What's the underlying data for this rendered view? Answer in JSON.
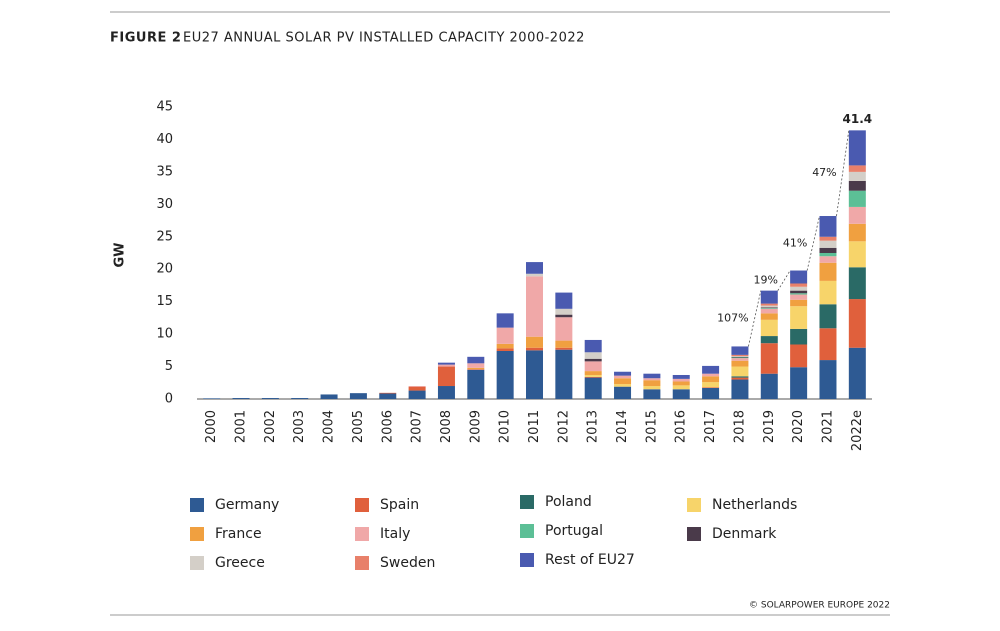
{
  "chart_data": {
    "type": "stacked_bar",
    "figure_label": "FIGURE 2",
    "title": "EU27 ANNUAL SOLAR PV INSTALLED CAPACITY 2000-2022",
    "ylabel": "GW",
    "source": "© SOLARPOWER EUROPE 2022",
    "categories": [
      "2000",
      "2001",
      "2002",
      "2003",
      "2004",
      "2005",
      "2006",
      "2007",
      "2008",
      "2009",
      "2010",
      "2011",
      "2012",
      "2013",
      "2014",
      "2015",
      "2016",
      "2017",
      "2018",
      "2019",
      "2020",
      "2021",
      "2022e"
    ],
    "ylim": [
      0,
      45
    ],
    "yticks": [
      0,
      5,
      10,
      15,
      20,
      25,
      30,
      35,
      40,
      45
    ],
    "grid": false,
    "series": [
      {
        "name": "Germany",
        "color": "#2e5a93",
        "values": [
          0.1,
          0.15,
          0.15,
          0.15,
          0.7,
          0.9,
          0.85,
          1.3,
          2.0,
          4.5,
          7.4,
          7.5,
          7.6,
          3.3,
          1.9,
          1.5,
          1.5,
          1.7,
          3.0,
          3.9,
          4.9,
          6.0,
          7.9
        ]
      },
      {
        "name": "Spain",
        "color": "#e0603c",
        "values": [
          0,
          0,
          0,
          0,
          0,
          0,
          0.1,
          0.6,
          3.0,
          0.1,
          0.4,
          0.4,
          0.3,
          0.1,
          0,
          0,
          0,
          0.1,
          0.3,
          4.7,
          3.5,
          4.9,
          7.5
        ]
      },
      {
        "name": "Poland",
        "color": "#2a6a66",
        "values": [
          0,
          0,
          0,
          0,
          0,
          0,
          0,
          0,
          0,
          0,
          0,
          0,
          0,
          0,
          0,
          0,
          0,
          0,
          0.2,
          1.1,
          2.4,
          3.7,
          4.9
        ]
      },
      {
        "name": "Netherlands",
        "color": "#f7d46a",
        "values": [
          0,
          0,
          0,
          0,
          0,
          0,
          0,
          0,
          0,
          0,
          0,
          0,
          0,
          0.3,
          0.4,
          0.5,
          0.6,
          0.8,
          1.5,
          2.5,
          3.5,
          3.6,
          4.0
        ]
      },
      {
        "name": "France",
        "color": "#f0a040",
        "values": [
          0,
          0,
          0,
          0,
          0,
          0,
          0,
          0,
          0,
          0.2,
          0.7,
          1.7,
          1.1,
          0.6,
          0.9,
          0.9,
          0.6,
          0.9,
          0.9,
          1.0,
          1.0,
          2.8,
          2.7
        ]
      },
      {
        "name": "Italy",
        "color": "#f0a8a8",
        "values": [
          0,
          0,
          0,
          0,
          0,
          0,
          0,
          0.1,
          0.3,
          0.7,
          2.5,
          9.3,
          3.6,
          1.5,
          0.4,
          0.3,
          0.4,
          0.4,
          0.4,
          0.7,
          0.8,
          1.0,
          2.6
        ]
      },
      {
        "name": "Portugal",
        "color": "#5cbf96",
        "values": [
          0,
          0,
          0,
          0,
          0,
          0,
          0,
          0,
          0,
          0,
          0,
          0,
          0,
          0,
          0,
          0,
          0,
          0,
          0.1,
          0.1,
          0.2,
          0.5,
          2.5
        ]
      },
      {
        "name": "Denmark",
        "color": "#4a3a4a",
        "values": [
          0,
          0,
          0,
          0,
          0,
          0,
          0,
          0,
          0,
          0,
          0,
          0,
          0.4,
          0.4,
          0,
          0,
          0,
          0,
          0.1,
          0.1,
          0.4,
          0.8,
          1.5
        ]
      },
      {
        "name": "Greece",
        "color": "#d4cfc8",
        "values": [
          0,
          0,
          0,
          0,
          0,
          0,
          0,
          0,
          0,
          0,
          0,
          0.4,
          0.9,
          1.0,
          0,
          0,
          0,
          0,
          0.1,
          0.3,
          0.6,
          1.1,
          1.4
        ]
      },
      {
        "name": "Sweden",
        "color": "#e8806a",
        "values": [
          0,
          0,
          0,
          0,
          0,
          0,
          0,
          0,
          0,
          0,
          0,
          0,
          0,
          0,
          0,
          0,
          0,
          0,
          0.2,
          0.3,
          0.5,
          0.6,
          1.0
        ]
      },
      {
        "name": "Rest of EU27",
        "color": "#4a5ab0",
        "values": [
          0,
          0,
          0,
          0,
          0,
          0,
          0,
          0,
          0.3,
          1.0,
          2.2,
          1.8,
          2.5,
          1.9,
          0.6,
          0.7,
          0.6,
          1.2,
          1.3,
          2.0,
          2.0,
          3.2,
          5.4
        ]
      }
    ],
    "growth_labels": [
      "107%",
      "19%",
      "41%",
      "47%"
    ],
    "total_label": 41.4
  }
}
